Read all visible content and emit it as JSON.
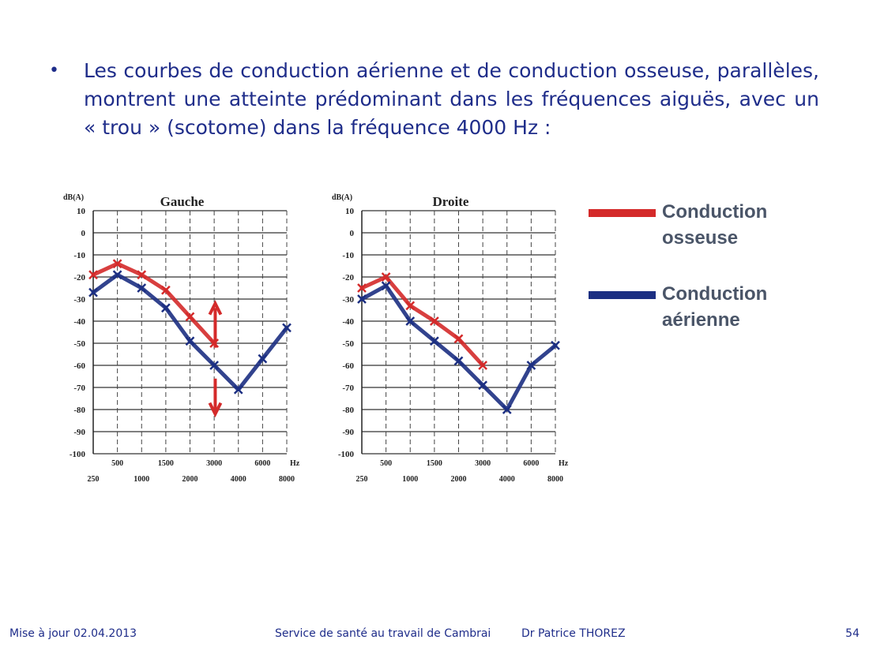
{
  "slide": {
    "bullet_text": "Les courbes de conduction aérienne et de conduction osseuse, parallèles, montrent une atteinte prédominant dans les fréquences aiguës, avec un « trou » (scotome) dans la fréquence 4000 Hz :"
  },
  "legend": {
    "items": [
      {
        "label": "Conduction osseuse",
        "color": "#d42a2a"
      },
      {
        "label": "Conduction aérienne",
        "color": "#1c2f82"
      }
    ]
  },
  "footer": {
    "date": "Mise à jour 02.04.2013",
    "service": "Service de santé au travail de Cambrai",
    "doctor": "Dr Patrice THOREZ",
    "page": "54"
  },
  "chart_data": [
    {
      "type": "line",
      "title": "Gauche",
      "ylabel": "dB(A)",
      "xunit": "Hz",
      "ylim": [
        -100,
        10
      ],
      "y_ticks": [
        10,
        0,
        -10,
        -20,
        -30,
        -40,
        -50,
        -60,
        -70,
        -80,
        -90,
        -100
      ],
      "x_upper_labels": [
        "500",
        "1500",
        "3000",
        "6000"
      ],
      "x_lower_labels": [
        "250",
        "1000",
        "2000",
        "4000",
        "8000"
      ],
      "series": [
        {
          "name": "Conduction osseuse",
          "x": [
            250,
            500,
            1000,
            1500,
            2000,
            3000
          ],
          "y": [
            -19,
            -14,
            -19,
            -26,
            -38,
            -50
          ]
        },
        {
          "name": "Conduction aérienne",
          "x": [
            250,
            500,
            1000,
            1500,
            2000,
            3000,
            4000,
            6000,
            8000
          ],
          "y": [
            -27,
            -19,
            -25,
            -34,
            -49,
            -60,
            -71,
            -57,
            -43
          ]
        }
      ]
    },
    {
      "type": "line",
      "title": "Droite",
      "ylabel": "dB(A)",
      "xunit": "Hz",
      "ylim": [
        -100,
        10
      ],
      "y_ticks": [
        10,
        0,
        -10,
        -20,
        -30,
        -40,
        -50,
        -60,
        -70,
        -80,
        -90,
        -100
      ],
      "x_upper_labels": [
        "500",
        "1500",
        "3000",
        "6000"
      ],
      "x_lower_labels": [
        "250",
        "1000",
        "2000",
        "4000",
        "8000"
      ],
      "series": [
        {
          "name": "Conduction osseuse",
          "x": [
            250,
            500,
            1000,
            1500,
            2000,
            3000
          ],
          "y": [
            -25,
            -20,
            -33,
            -40,
            -48,
            -60
          ]
        },
        {
          "name": "Conduction aérienne",
          "x": [
            250,
            500,
            1000,
            1500,
            2000,
            3000,
            4000,
            6000,
            8000
          ],
          "y": [
            -30,
            -24,
            -40,
            -49,
            -58,
            -69,
            -80,
            -60,
            -51
          ]
        }
      ]
    }
  ]
}
